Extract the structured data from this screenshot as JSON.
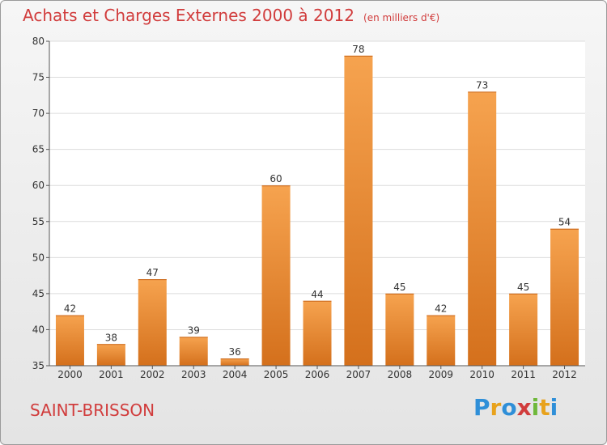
{
  "header": {
    "title": "Achats et Charges Externes 2000 à 2012",
    "subtitle": "(en milliers d'€)"
  },
  "footer": {
    "city": "SAINT-BRISSON",
    "brand": {
      "letters": [
        {
          "char": "P",
          "color": "#2f8fd8"
        },
        {
          "char": "r",
          "color": "#e8a21c"
        },
        {
          "char": "o",
          "color": "#2f8fd8"
        },
        {
          "char": "x",
          "color": "#d13c3c"
        },
        {
          "char": "i",
          "color": "#6fb83a"
        },
        {
          "char": "t",
          "color": "#e8a21c"
        },
        {
          "char": "i",
          "color": "#2f8fd8"
        }
      ]
    }
  },
  "colors": {
    "bar_top": "#f6a34f",
    "bar_bottom": "#d4701c",
    "accent": "#d13c3c"
  },
  "chart_data": {
    "type": "bar",
    "title": "Achats et Charges Externes 2000 à 2012",
    "subtitle": "(en milliers d'€)",
    "xlabel": "",
    "ylabel": "",
    "categories": [
      "2000",
      "2001",
      "2002",
      "2003",
      "2004",
      "2005",
      "2006",
      "2007",
      "2008",
      "2009",
      "2010",
      "2011",
      "2012"
    ],
    "values": [
      42,
      38,
      47,
      39,
      36,
      60,
      44,
      78,
      45,
      42,
      73,
      45,
      54
    ],
    "data_labels": [
      "42",
      "38",
      "47",
      "39",
      "36",
      "60",
      "44",
      "78",
      "45",
      "42",
      "73",
      "45",
      "54"
    ],
    "ylim": [
      35,
      80
    ],
    "yticks": [
      35,
      40,
      45,
      50,
      55,
      60,
      65,
      70,
      75,
      80
    ],
    "ytick_labels": [
      "35",
      "40",
      "45",
      "50",
      "55",
      "60",
      "65",
      "70",
      "75",
      "80"
    ],
    "grid": true,
    "legend": "none"
  }
}
